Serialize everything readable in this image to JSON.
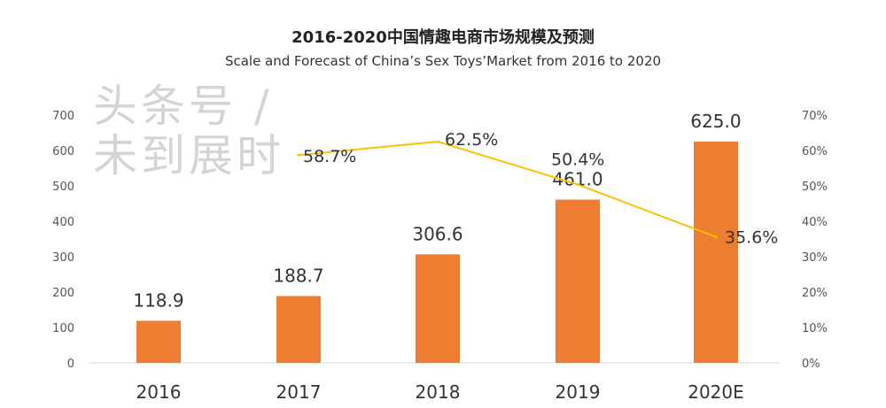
{
  "chart_data": {
    "type": "bar+line",
    "title": "2016-2020中国情趣电商市场规模及预测",
    "subtitle": "Scale and Forecast of China’s Sex Toys’Market from 2016 to 2020",
    "categories": [
      "2016",
      "2017",
      "2018",
      "2019",
      "2020E"
    ],
    "bar_series": {
      "values": [
        118.9,
        188.7,
        306.6,
        461.0,
        625.0
      ],
      "labels": [
        "118.9",
        "188.7",
        "306.6",
        "461.0",
        "625.0"
      ],
      "color": "#ED7D31"
    },
    "line_series": {
      "values": [
        null,
        58.7,
        62.5,
        50.4,
        35.6
      ],
      "labels": [
        "",
        "58.7%",
        "62.5%",
        "50.4%",
        "35.6%"
      ],
      "color": "#FFC000"
    },
    "y_left": {
      "range": [
        0,
        700
      ],
      "ticks": [
        "0",
        "100",
        "200",
        "300",
        "400",
        "500",
        "600",
        "700"
      ]
    },
    "y_right": {
      "range": [
        0,
        70
      ],
      "ticks": [
        "0%",
        "10%",
        "20%",
        "30%",
        "40%",
        "50%",
        "60%",
        "70%"
      ]
    },
    "grid": false,
    "legend": "none"
  },
  "watermark": "头条号 / 未到展时"
}
